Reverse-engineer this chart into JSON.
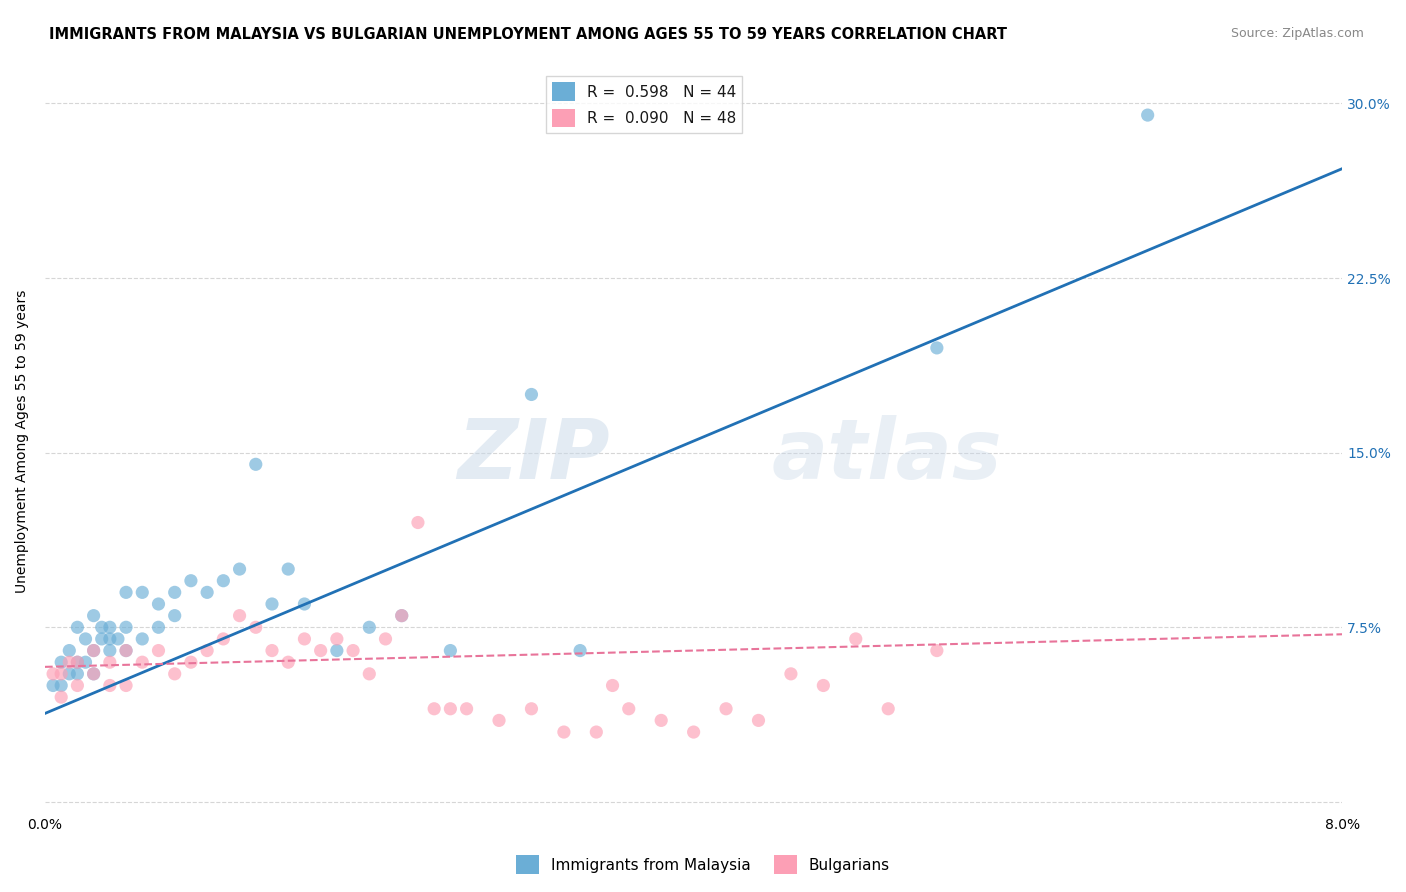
{
  "title": "IMMIGRANTS FROM MALAYSIA VS BULGARIAN UNEMPLOYMENT AMONG AGES 55 TO 59 YEARS CORRELATION CHART",
  "source": "Source: ZipAtlas.com",
  "ylabel": "Unemployment Among Ages 55 to 59 years",
  "xlim": [
    0.0,
    0.08
  ],
  "ylim": [
    -0.005,
    0.315
  ],
  "legend1_label": "Immigrants from Malaysia",
  "legend2_label": "Bulgarians",
  "r1": 0.598,
  "n1": 44,
  "r2": 0.09,
  "n2": 48,
  "color1": "#6baed6",
  "color2": "#fc9fb5",
  "line1_color": "#2171b5",
  "line2_color": "#e8749a",
  "background_color": "#ffffff",
  "grid_color": "#cccccc",
  "watermark_zip": "ZIP",
  "watermark_atlas": "atlas",
  "scatter1_x": [
    0.0005,
    0.001,
    0.001,
    0.0015,
    0.0015,
    0.002,
    0.002,
    0.002,
    0.0025,
    0.0025,
    0.003,
    0.003,
    0.003,
    0.0035,
    0.0035,
    0.004,
    0.004,
    0.004,
    0.0045,
    0.005,
    0.005,
    0.005,
    0.006,
    0.006,
    0.007,
    0.007,
    0.008,
    0.008,
    0.009,
    0.01,
    0.011,
    0.012,
    0.013,
    0.014,
    0.015,
    0.016,
    0.018,
    0.02,
    0.022,
    0.025,
    0.03,
    0.033,
    0.055,
    0.068
  ],
  "scatter1_y": [
    0.05,
    0.05,
    0.06,
    0.055,
    0.065,
    0.055,
    0.06,
    0.075,
    0.06,
    0.07,
    0.055,
    0.065,
    0.08,
    0.07,
    0.075,
    0.065,
    0.07,
    0.075,
    0.07,
    0.065,
    0.075,
    0.09,
    0.07,
    0.09,
    0.075,
    0.085,
    0.08,
    0.09,
    0.095,
    0.09,
    0.095,
    0.1,
    0.145,
    0.085,
    0.1,
    0.085,
    0.065,
    0.075,
    0.08,
    0.065,
    0.175,
    0.065,
    0.195,
    0.295
  ],
  "scatter2_x": [
    0.0005,
    0.001,
    0.001,
    0.0015,
    0.002,
    0.002,
    0.003,
    0.003,
    0.004,
    0.004,
    0.005,
    0.005,
    0.006,
    0.007,
    0.008,
    0.009,
    0.01,
    0.011,
    0.012,
    0.013,
    0.014,
    0.015,
    0.016,
    0.017,
    0.018,
    0.019,
    0.02,
    0.021,
    0.022,
    0.023,
    0.024,
    0.025,
    0.026,
    0.028,
    0.03,
    0.032,
    0.034,
    0.035,
    0.036,
    0.038,
    0.04,
    0.042,
    0.044,
    0.046,
    0.048,
    0.05,
    0.052,
    0.055
  ],
  "scatter2_y": [
    0.055,
    0.045,
    0.055,
    0.06,
    0.05,
    0.06,
    0.055,
    0.065,
    0.05,
    0.06,
    0.05,
    0.065,
    0.06,
    0.065,
    0.055,
    0.06,
    0.065,
    0.07,
    0.08,
    0.075,
    0.065,
    0.06,
    0.07,
    0.065,
    0.07,
    0.065,
    0.055,
    0.07,
    0.08,
    0.12,
    0.04,
    0.04,
    0.04,
    0.035,
    0.04,
    0.03,
    0.03,
    0.05,
    0.04,
    0.035,
    0.03,
    0.04,
    0.035,
    0.055,
    0.05,
    0.07,
    0.04,
    0.065
  ],
  "line1_x0": 0.0,
  "line1_y0": 0.038,
  "line1_x1": 0.08,
  "line1_y1": 0.272,
  "line2_x0": 0.0,
  "line2_y0": 0.058,
  "line2_x1": 0.08,
  "line2_y1": 0.072,
  "title_fontsize": 10.5,
  "axis_fontsize": 10,
  "tick_fontsize": 10,
  "source_fontsize": 9
}
